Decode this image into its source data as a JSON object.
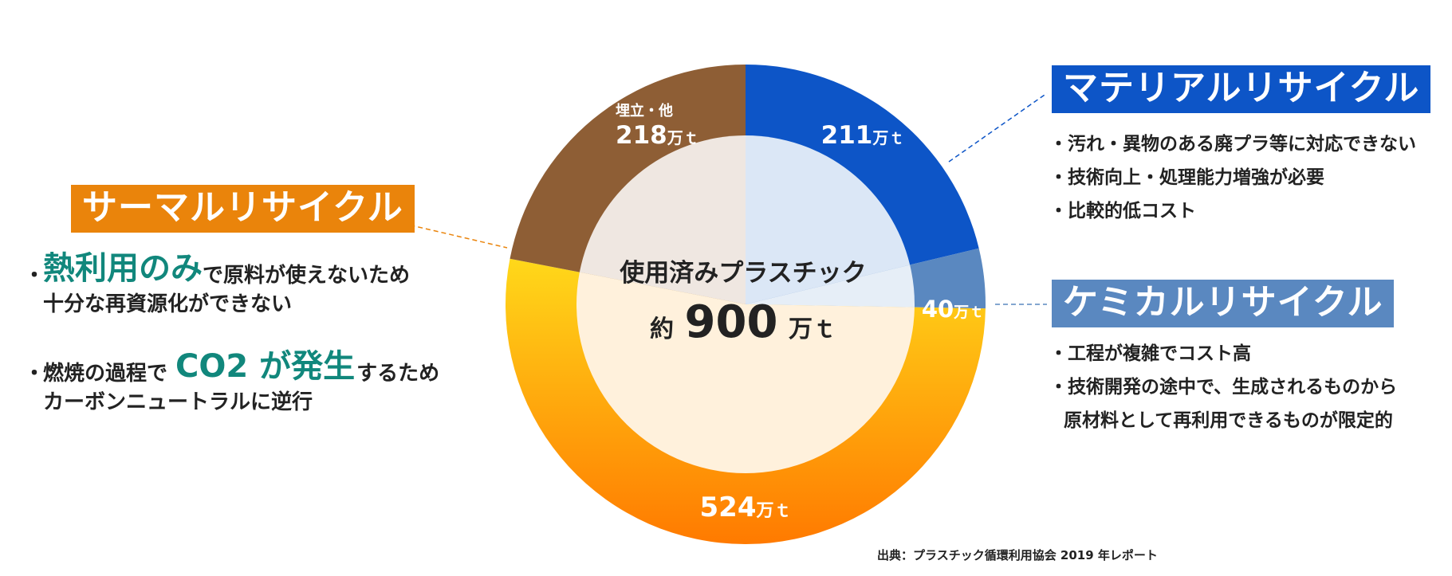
{
  "chart_data": {
    "type": "pie",
    "title": "使用済みプラスチック",
    "total_prefix": "約",
    "total_value": "900",
    "total_unit": "万ｔ",
    "unit": "万ｔ",
    "slices": [
      {
        "name": "マテリアルリサイクル",
        "value": 211,
        "value_label": "211",
        "unit_label": "万ｔ",
        "color_top": "#0d55c7",
        "color_bottom": "#0d55c7",
        "inner": "#dbe7f6"
      },
      {
        "name": "ケミカルリサイクル",
        "value": 40,
        "value_label": "40",
        "unit_label": "万ｔ",
        "color_top": "#5a88c0",
        "color_bottom": "#5a88c0",
        "inner": "#e6eef7"
      },
      {
        "name": "サーマルリサイクル",
        "value": 524,
        "value_label": "524",
        "unit_label": "万ｔ",
        "color_top": "#ffd81a",
        "color_bottom": "#ff7a00",
        "inner": "#fff1dc"
      },
      {
        "name": "埋立・他",
        "value": 218,
        "value_label": "218",
        "unit_label": "万ｔ",
        "sublabel": "埋立・他",
        "color_top": "#8e5e35",
        "color_bottom": "#8e5e35",
        "inner": "#efe7e1"
      }
    ]
  },
  "thermal": {
    "title": "サーマルリサイクル",
    "bullet": "・",
    "note1": {
      "em": "熱利用のみ",
      "rest": "で原料が使えないため",
      "line2": "十分な再資源化ができない"
    },
    "note2": {
      "pre": "燃焼の過程で",
      "em": "CO2 が発生",
      "rest": "するため",
      "line2": "カーボンニュートラルに逆行"
    }
  },
  "material": {
    "title": "マテリアルリサイクル",
    "notes": [
      "・汚れ・異物のある廃プラ等に対応できない",
      "・技術向上・処理能力増強が必要",
      "・比較的低コスト"
    ]
  },
  "chemical": {
    "title": "ケミカルリサイクル",
    "notes": [
      "・工程が複雑でコスト高",
      "・技術開発の途中で、生成されるものから"
    ],
    "notes_cont": "原材料として再利用できるものが限定的"
  },
  "source": "出典：プラスチック循環利用協会 2019 年レポート",
  "colors": {
    "teal_emphasis": "#11877c",
    "material_blue": "#0d55c7",
    "chemical_blue": "#5a88c0",
    "thermal_orange": "#ea840b",
    "landfill_brown": "#8e5e35"
  }
}
